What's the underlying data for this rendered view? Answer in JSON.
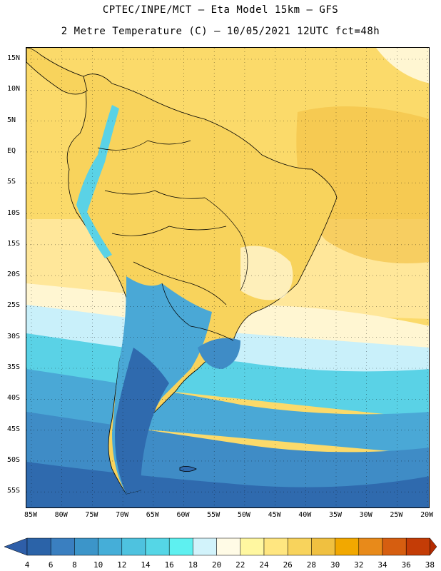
{
  "header": {
    "line1": "CPTEC/INPE/MCT —  Eta Model 15km — GFS",
    "line2": "2 Metre Temperature (C) — 10/05/2021 12UTC fct=48h"
  },
  "axes": {
    "lat_labels": [
      "15N",
      "10N",
      "5N",
      "EQ",
      "5S",
      "10S",
      "15S",
      "20S",
      "25S",
      "30S",
      "35S",
      "40S",
      "45S",
      "50S",
      "55S"
    ],
    "lon_labels": [
      "85W",
      "80W",
      "75W",
      "70W",
      "65W",
      "60W",
      "55W",
      "50W",
      "45W",
      "40W",
      "35W",
      "30W",
      "25W",
      "20W"
    ]
  },
  "colorbar": {
    "labels": [
      "4",
      "6",
      "8",
      "10",
      "12",
      "14",
      "16",
      "18",
      "20",
      "22",
      "24",
      "26",
      "28",
      "30",
      "32",
      "34",
      "36",
      "38"
    ],
    "colors": [
      "#2b63a8",
      "#3a7fc0",
      "#3c95c9",
      "#45aed8",
      "#4ec2df",
      "#55d6e6",
      "#5ef0f0",
      "#d2f3fb",
      "#fffbe6",
      "#fff7a0",
      "#ffe680",
      "#f8d35c",
      "#f0c040",
      "#f2a800",
      "#e88a1a",
      "#d65e10",
      "#c43c06"
    ],
    "under_color": "#2e5ea8",
    "over_color": "#b52b00"
  },
  "field": {
    "colors": {
      "deep_blue": "#2f6aae",
      "blue": "#3f8cc6",
      "mid_blue": "#4aa8d6",
      "cyan": "#5ad2e6",
      "light_cyan": "#c9f0fa",
      "cream": "#fff6d2",
      "light_yellow": "#ffe79a",
      "yellow": "#fbda6a",
      "gold": "#f3c349",
      "land_line": "#000000"
    }
  }
}
